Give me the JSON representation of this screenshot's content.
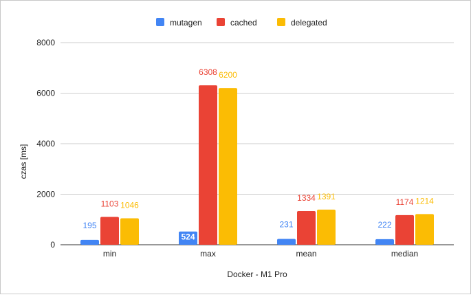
{
  "chart_data": {
    "type": "bar",
    "title": "",
    "xlabel": "Docker - M1 Pro",
    "ylabel": "czas [ms]",
    "categories": [
      "min",
      "max",
      "mean",
      "median"
    ],
    "series": [
      {
        "name": "mutagen",
        "color": "#4285f4",
        "values": [
          195,
          524,
          231,
          222
        ]
      },
      {
        "name": "cached",
        "color": "#ea4335",
        "values": [
          1103,
          6308,
          1334,
          1174
        ]
      },
      {
        "name": "delegated",
        "color": "#fbbc04",
        "values": [
          1046,
          6200,
          1391,
          1214
        ]
      }
    ],
    "ylim": [
      0,
      8000
    ],
    "yticks": [
      0,
      2000,
      4000,
      6000,
      8000
    ],
    "grid": true,
    "legend_position": "top-center"
  }
}
